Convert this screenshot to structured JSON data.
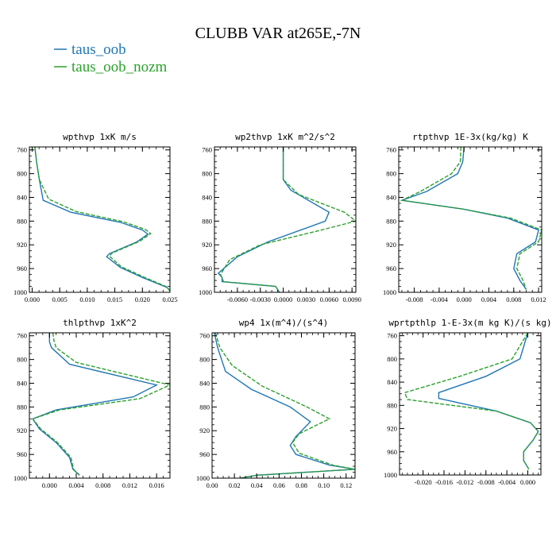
{
  "title": "CLUBB VAR at265E,-7N",
  "legend": {
    "placement": "top-left",
    "entries": [
      {
        "name": "taus_oob",
        "color": "#1f77b4",
        "style": "solid"
      },
      {
        "name": "taus_oob_nozm",
        "color": "#2ca02c",
        "style": "dashed"
      }
    ]
  },
  "chart_data": [
    {
      "type": "line",
      "title": "wpthvp  1xK m/s",
      "ylim": [
        1000,
        755
      ],
      "yticks": [
        760,
        800,
        840,
        880,
        920,
        960,
        1000
      ],
      "xlim": [
        -0.0005,
        0.025
      ],
      "xticks": [
        0.0,
        0.005,
        0.01,
        0.015,
        0.02,
        0.025
      ],
      "xticklabels": [
        "0.000",
        "0.005",
        "0.010",
        "0.015",
        "0.020",
        "0.025"
      ],
      "series": [
        {
          "name": "taus_oob",
          "x": [
            0.0005,
            0.0008,
            0.0013,
            0.002,
            0.007,
            0.016,
            0.02,
            0.021,
            0.019,
            0.014,
            0.0135,
            0.016,
            0.02,
            0.0245,
            0.025
          ],
          "y": [
            755,
            780,
            810,
            845,
            865,
            882,
            895,
            902,
            915,
            935,
            940,
            958,
            975,
            992,
            998
          ]
        },
        {
          "name": "taus_oob_nozm",
          "x": [
            0.0005,
            0.0008,
            0.0013,
            0.003,
            0.008,
            0.0165,
            0.0205,
            0.0215,
            0.0195,
            0.0145,
            0.014,
            0.0162,
            0.0202,
            0.0245,
            0.025
          ],
          "y": [
            755,
            780,
            810,
            843,
            864,
            881,
            894,
            901,
            914,
            934,
            939,
            957,
            974,
            991,
            998
          ]
        }
      ]
    },
    {
      "type": "line",
      "title": "wp2thvp  1xK m^2/s^2",
      "ylim": [
        1000,
        755
      ],
      "yticks": [
        760,
        800,
        840,
        880,
        920,
        960,
        1000
      ],
      "xlim": [
        -0.009,
        0.0095
      ],
      "xticks": [
        -0.006,
        -0.003,
        0.0,
        0.003,
        0.006,
        0.009
      ],
      "xticklabels": [
        "-0.0060",
        "-0.0030",
        "0.0000",
        "0.0030",
        "0.0060",
        "0.0090"
      ],
      "series": [
        {
          "name": "taus_oob",
          "x": [
            0.0,
            0.0,
            0.001,
            0.006,
            0.0055,
            -0.002,
            -0.006,
            -0.0085,
            -0.008,
            -0.008,
            -0.001,
            -0.0005
          ],
          "y": [
            755,
            810,
            828,
            865,
            880,
            915,
            940,
            968,
            975,
            982,
            990,
            1000
          ]
        },
        {
          "name": "taus_oob_nozm",
          "x": [
            0.0,
            0.0,
            0.002,
            0.008,
            0.0095,
            0.005,
            -0.003,
            -0.007,
            -0.0082,
            -0.0078,
            -0.001,
            -0.0005
          ],
          "y": [
            755,
            810,
            835,
            865,
            880,
            895,
            920,
            945,
            970,
            982,
            990,
            1000
          ]
        }
      ]
    },
    {
      "type": "line",
      "title": "rtpthvp  1E-3x(kg/kg) K",
      "ylim": [
        1000,
        755
      ],
      "yticks": [
        760,
        800,
        840,
        880,
        920,
        960,
        1000
      ],
      "xlim": [
        -0.0105,
        0.0125
      ],
      "xticks": [
        -0.008,
        -0.004,
        0.0,
        0.004,
        0.008,
        0.012
      ],
      "xticklabels": [
        "-0.008",
        "-0.004",
        "0.000",
        "0.004",
        "0.008",
        "0.012"
      ],
      "series": [
        {
          "name": "taus_oob",
          "x": [
            0.0,
            -0.0002,
            -0.001,
            -0.006,
            -0.01,
            0.0,
            0.007,
            0.012,
            0.0115,
            0.0085,
            0.008,
            0.009,
            0.01
          ],
          "y": [
            755,
            780,
            800,
            830,
            845,
            860,
            875,
            895,
            915,
            935,
            960,
            980,
            995
          ]
        },
        {
          "name": "taus_oob_nozm",
          "x": [
            -0.0005,
            -0.0006,
            -0.002,
            -0.007,
            -0.01,
            0.0,
            0.0075,
            0.0125,
            0.012,
            0.009,
            0.0085,
            0.0095,
            0.01
          ],
          "y": [
            755,
            780,
            800,
            830,
            845,
            860,
            875,
            895,
            915,
            935,
            960,
            980,
            995
          ]
        }
      ]
    },
    {
      "type": "line",
      "title": "thlpthvp  1xK^2",
      "ylim": [
        1000,
        755
      ],
      "yticks": [
        760,
        800,
        840,
        880,
        920,
        960,
        1000
      ],
      "xlim": [
        -0.003,
        0.018
      ],
      "xticks": [
        0.0,
        0.004,
        0.008,
        0.012,
        0.016
      ],
      "xticklabels": [
        "0.000",
        "0.004",
        "0.008",
        "0.012",
        "0.016"
      ],
      "series": [
        {
          "name": "taus_oob",
          "x": [
            0.0,
            0.0,
            0.0003,
            0.003,
            0.016,
            0.0125,
            0.001,
            -0.0025,
            -0.0015,
            0.001,
            0.003,
            0.0035,
            0.0045
          ],
          "y": [
            755,
            770,
            780,
            808,
            843,
            863,
            885,
            900,
            917,
            940,
            965,
            985,
            995
          ]
        },
        {
          "name": "taus_oob_nozm",
          "x": [
            0.0005,
            0.0007,
            0.001,
            0.004,
            0.018,
            0.0135,
            0.0015,
            -0.0025,
            -0.0013,
            0.0012,
            0.0032,
            0.0036,
            0.0045
          ],
          "y": [
            755,
            770,
            780,
            805,
            843,
            866,
            885,
            900,
            917,
            940,
            965,
            985,
            995
          ]
        }
      ]
    },
    {
      "type": "line",
      "title": "wp4  1x(m^4)/(s^4)",
      "ylim": [
        1000,
        755
      ],
      "yticks": [
        760,
        800,
        840,
        880,
        920,
        960,
        1000
      ],
      "xlim": [
        0.0,
        0.128
      ],
      "xticks": [
        0.0,
        0.02,
        0.04,
        0.06,
        0.08,
        0.1,
        0.12
      ],
      "xticklabels": [
        "0.00",
        "0.02",
        "0.04",
        "0.06",
        "0.08",
        "0.10",
        "0.12"
      ],
      "series": [
        {
          "name": "taus_oob",
          "x": [
            0.002,
            0.005,
            0.012,
            0.035,
            0.07,
            0.088,
            0.075,
            0.07,
            0.075,
            0.105,
            0.128,
            0.04,
            0.025
          ],
          "y": [
            755,
            780,
            820,
            850,
            880,
            905,
            930,
            945,
            960,
            978,
            985,
            995,
            1000
          ]
        },
        {
          "name": "taus_oob_nozm",
          "x": [
            0.003,
            0.007,
            0.018,
            0.045,
            0.085,
            0.105,
            0.078,
            0.072,
            0.078,
            0.108,
            0.128,
            0.04,
            0.025
          ],
          "y": [
            755,
            780,
            810,
            845,
            880,
            900,
            925,
            940,
            958,
            978,
            985,
            995,
            1000
          ]
        }
      ]
    },
    {
      "type": "line",
      "title": "wprtpthlp  1-E-3x(m kg K)/(s kg)",
      "ylim": [
        1000,
        755
      ],
      "yticks": [
        760,
        800,
        840,
        880,
        920,
        960,
        1000
      ],
      "xlim": [
        -0.0245,
        0.0025
      ],
      "xticks": [
        -0.02,
        -0.016,
        -0.012,
        -0.008,
        -0.004,
        0.0
      ],
      "xticklabels": [
        "-0.020",
        "-0.016",
        "-0.012",
        "-0.008",
        "-0.004",
        "0.000"
      ],
      "series": [
        {
          "name": "taus_oob",
          "x": [
            0.0,
            -0.0005,
            -0.0015,
            -0.008,
            -0.017,
            -0.017,
            -0.006,
            0.0005,
            0.002,
            0.001,
            -0.0008,
            -0.0008,
            0.0002
          ],
          "y": [
            755,
            770,
            800,
            830,
            858,
            868,
            890,
            910,
            925,
            940,
            960,
            975,
            990
          ]
        },
        {
          "name": "taus_oob_nozm",
          "x": [
            0.0,
            -0.001,
            -0.003,
            -0.013,
            -0.0235,
            -0.023,
            -0.006,
            0.0005,
            0.002,
            0.001,
            -0.0008,
            -0.0008,
            0.0002
          ],
          "y": [
            755,
            770,
            800,
            830,
            858,
            870,
            890,
            910,
            925,
            940,
            960,
            975,
            990
          ]
        }
      ]
    }
  ]
}
